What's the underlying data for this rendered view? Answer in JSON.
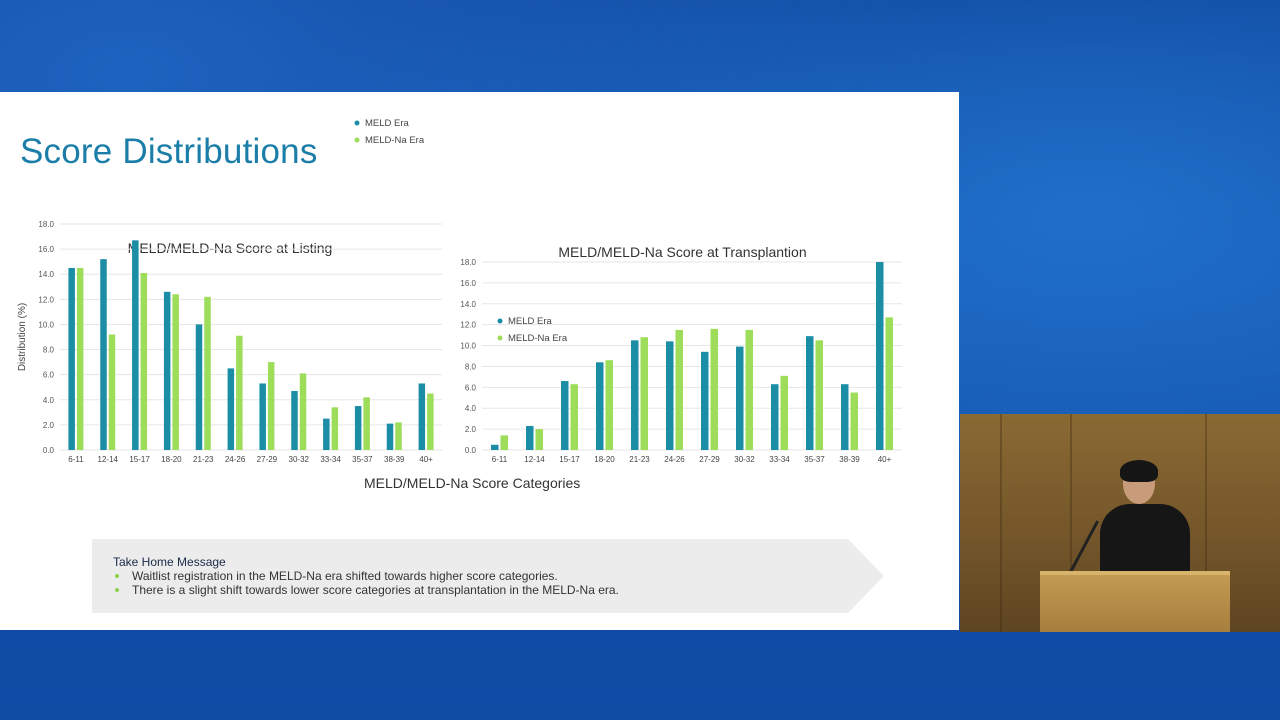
{
  "slide": {
    "title": "Score Distributions",
    "shared_xlabel": "MELD/MELD-Na Score Categories",
    "take_home": {
      "title": "Take Home Message",
      "items": [
        "Waitlist registration in the MELD-Na era shifted towards higher score categories.",
        "There is a slight shift towards lower score categories at transplantation in the MELD-Na era."
      ]
    }
  },
  "colors": {
    "meld": "#1b8ea5",
    "meld_na": "#9ddd5a",
    "title": "#1b7ea8",
    "grid": "#e6e6e6"
  },
  "chart_data": [
    {
      "type": "bar",
      "title": "MELD/MELD-Na Score at Listing",
      "xlabel": "",
      "ylabel": "Distribution (%)",
      "ylim": [
        0,
        18
      ],
      "yticks": [
        "0.0",
        "2.0",
        "4.0",
        "6.0",
        "8.0",
        "10.0",
        "12.0",
        "14.0",
        "16.0",
        "18.0"
      ],
      "grid": true,
      "legend": "right",
      "categories": [
        "6-11",
        "12-14",
        "15-17",
        "18-20",
        "21-23",
        "24-26",
        "27-29",
        "30-32",
        "33-34",
        "35-37",
        "38-39",
        "40+"
      ],
      "series": [
        {
          "name": "MELD Era",
          "values": [
            14.5,
            15.2,
            16.7,
            12.6,
            10.0,
            6.5,
            5.3,
            4.7,
            2.5,
            3.5,
            2.1,
            5.3
          ]
        },
        {
          "name": "MELD-Na Era",
          "values": [
            14.5,
            9.2,
            14.1,
            12.4,
            12.2,
            9.1,
            7.0,
            6.1,
            3.4,
            4.2,
            2.2,
            4.5
          ]
        }
      ]
    },
    {
      "type": "bar",
      "title": "MELD/MELD-Na Score at Transplantion",
      "xlabel": "",
      "ylabel": "",
      "ylim": [
        0,
        18
      ],
      "yticks": [
        "0.0",
        "2.0",
        "4.0",
        "6.0",
        "8.0",
        "10.0",
        "12.0",
        "14.0",
        "16.0",
        "18.0"
      ],
      "grid": true,
      "legend": "left",
      "categories": [
        "6-11",
        "12-14",
        "15-17",
        "18-20",
        "21-23",
        "24-26",
        "27-29",
        "30-32",
        "33-34",
        "35-37",
        "38-39",
        "40+"
      ],
      "series": [
        {
          "name": "MELD Era",
          "values": [
            0.5,
            2.3,
            6.6,
            8.4,
            10.5,
            10.4,
            9.4,
            9.9,
            6.3,
            10.9,
            6.3,
            18.0
          ]
        },
        {
          "name": "MELD-Na Era",
          "values": [
            1.4,
            2.0,
            6.3,
            8.6,
            10.8,
            11.5,
            11.6,
            11.5,
            7.1,
            10.5,
            5.5,
            12.7
          ]
        }
      ]
    }
  ]
}
